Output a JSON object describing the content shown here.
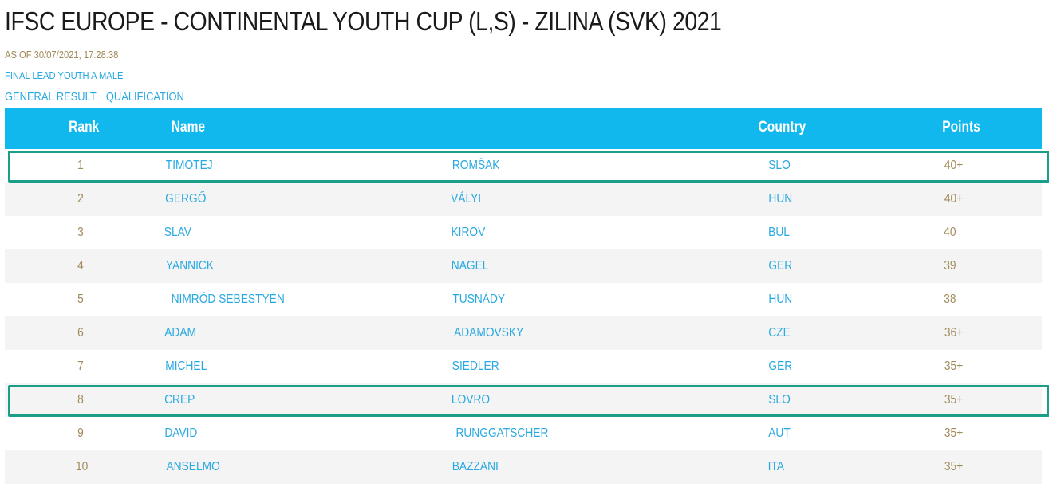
{
  "header": {
    "title": "IFSC EUROPE - CONTINENTAL YOUTH CUP (L,S) - ZILINA (SVK) 2021",
    "as_of": "AS OF 30/07/2021, 17:28:38",
    "event": "FINAL LEAD YOUTH A MALE",
    "links": [
      "GENERAL RESULT",
      "QUALIFICATION"
    ]
  },
  "colors": {
    "header_bg": "#10b8ee",
    "accent_text": "#29a9e1",
    "gold_text": "#a08a5a",
    "highlight_border": "#1a9e87"
  },
  "table": {
    "columns": {
      "rank": "Rank",
      "name": "Name",
      "country": "Country",
      "points": "Points"
    },
    "rows": [
      {
        "rank": "1",
        "first": "TIMOTEJ",
        "last": "ROMŠAK",
        "country": "SLO",
        "points": "40+",
        "highlighted": true
      },
      {
        "rank": "2",
        "first": "GERGŐ",
        "last": "VÁLYI",
        "country": "HUN",
        "points": "40+",
        "highlighted": false
      },
      {
        "rank": "3",
        "first": "SLAV",
        "last": "KIROV",
        "country": "BUL",
        "points": "40",
        "highlighted": false
      },
      {
        "rank": "4",
        "first": "YANNICK",
        "last": "NAGEL",
        "country": "GER",
        "points": "39",
        "highlighted": false
      },
      {
        "rank": "5",
        "first": "NIMRÓD SEBESTYÉN",
        "last": "TUSNÁDY",
        "country": "HUN",
        "points": "38",
        "highlighted": false
      },
      {
        "rank": "6",
        "first": "ADAM",
        "last": "ADAMOVSKY",
        "country": "CZE",
        "points": "36+",
        "highlighted": false
      },
      {
        "rank": "7",
        "first": "MICHEL",
        "last": "SIEDLER",
        "country": "GER",
        "points": "35+",
        "highlighted": false
      },
      {
        "rank": "8",
        "first": "CREP",
        "last": "LOVRO",
        "country": "SLO",
        "points": "35+",
        "highlighted": true
      },
      {
        "rank": "9",
        "first": "DAVID",
        "last": "RUNGGATSCHER",
        "country": "AUT",
        "points": "35+",
        "highlighted": false
      },
      {
        "rank": "10",
        "first": "ANSELMO",
        "last": "BAZZANI",
        "country": "ITA",
        "points": "35+",
        "highlighted": false
      }
    ]
  }
}
